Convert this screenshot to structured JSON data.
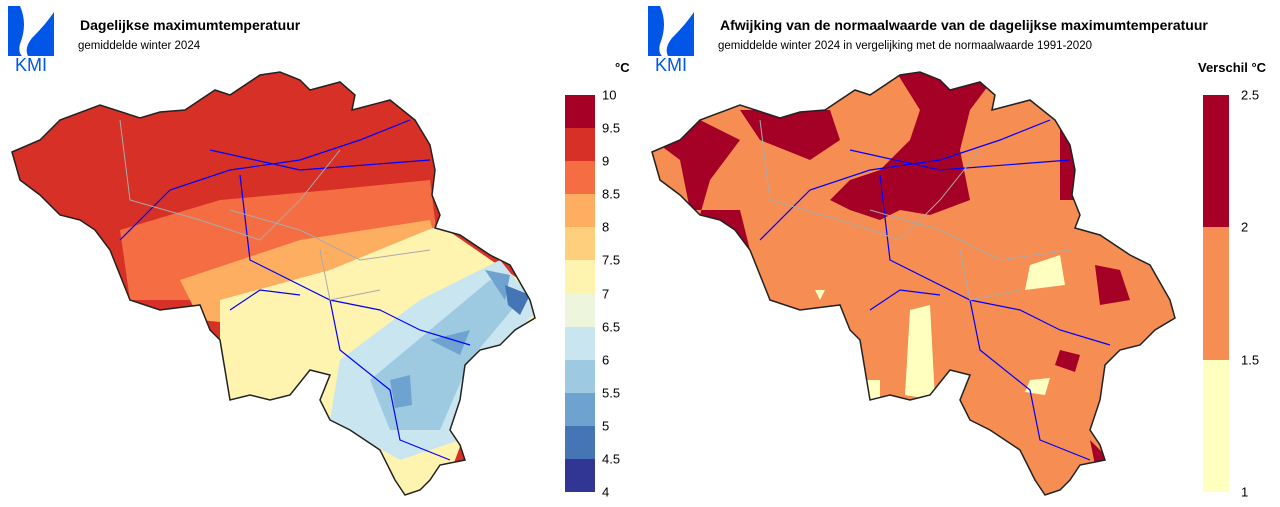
{
  "left": {
    "logo_text": "KMI",
    "title": "Dagelijkse maximumtemperatuur",
    "subtitle": "gemiddelde winter 2024",
    "unit": "°C",
    "legend": {
      "labels": [
        "10",
        "9.5",
        "9",
        "8.5",
        "8",
        "7.5",
        "7",
        "6.5",
        "6",
        "5.5",
        "5",
        "4.5",
        "4"
      ],
      "colors": [
        "#a50026",
        "#d73027",
        "#f46d43",
        "#fdae61",
        "#fed07e",
        "#fff3b0",
        "#edf6dc",
        "#c8e5f0",
        "#9ecae1",
        "#6ea3cf",
        "#4575b4",
        "#313695"
      ]
    }
  },
  "right": {
    "logo_text": "KMI",
    "title": "Afwijking van de normaalwaarde van de dagelijkse maximumtemperatuur",
    "subtitle": "gemiddelde winter 2024 in vergelijking met de normaalwaarde 1991-2020",
    "unit": "Verschil °C",
    "legend": {
      "labels": [
        "2.5",
        "2",
        "1.5",
        "1"
      ],
      "colors": [
        "#a50026",
        "#f68d52",
        "#ffffc0"
      ]
    }
  }
}
